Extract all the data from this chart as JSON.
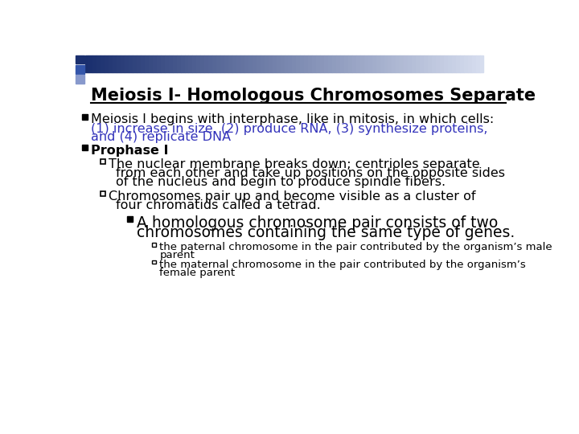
{
  "title": "Meiosis I- Homologous Chromosomes Separate",
  "bg_color": "#ffffff",
  "title_color": "#000000",
  "title_fontsize": 15,
  "bullet1_black": "Meiosis I begins with interphase, like in mitosis, in which cells:",
  "bullet1_blue_1": "(1) increase in size, (2) produce RNA, (3) synthesize proteins,",
  "bullet1_blue_2": "and (4) replicate DNA",
  "bullet2_bold": "Prophase I",
  "sub1_line1": "The nuclear membrane breaks down; centrioles separate",
  "sub1_line2": "from each other and take up positions on the opposite sides",
  "sub1_line3": "of the nucleus and begin to produce spindle fibers.",
  "sub2_line1": "Chromosomes pair up and become visible as a cluster of",
  "sub2_line2": "four chromatids called a tetrad.",
  "sub3_line1": "A homologous chromosome pair consists of two",
  "sub3_line2": "chromosomes containing the same type of genes.",
  "sub4_line1": "the paternal chromosome in the pair contributed by the organism’s male",
  "sub4_line2": "parent",
  "sub5_line1": "the maternal chromosome in the pair contributed by the organism’s",
  "sub5_line2": "female parent",
  "black": "#000000",
  "blue": "#3333bb",
  "body_fontsize": 11.5,
  "sub3_fontsize": 13.5,
  "small_fontsize": 9.5,
  "header_dark": "#1a2f6e",
  "header_mid": "#3a5fa0",
  "header_light": "#c8d4e8"
}
